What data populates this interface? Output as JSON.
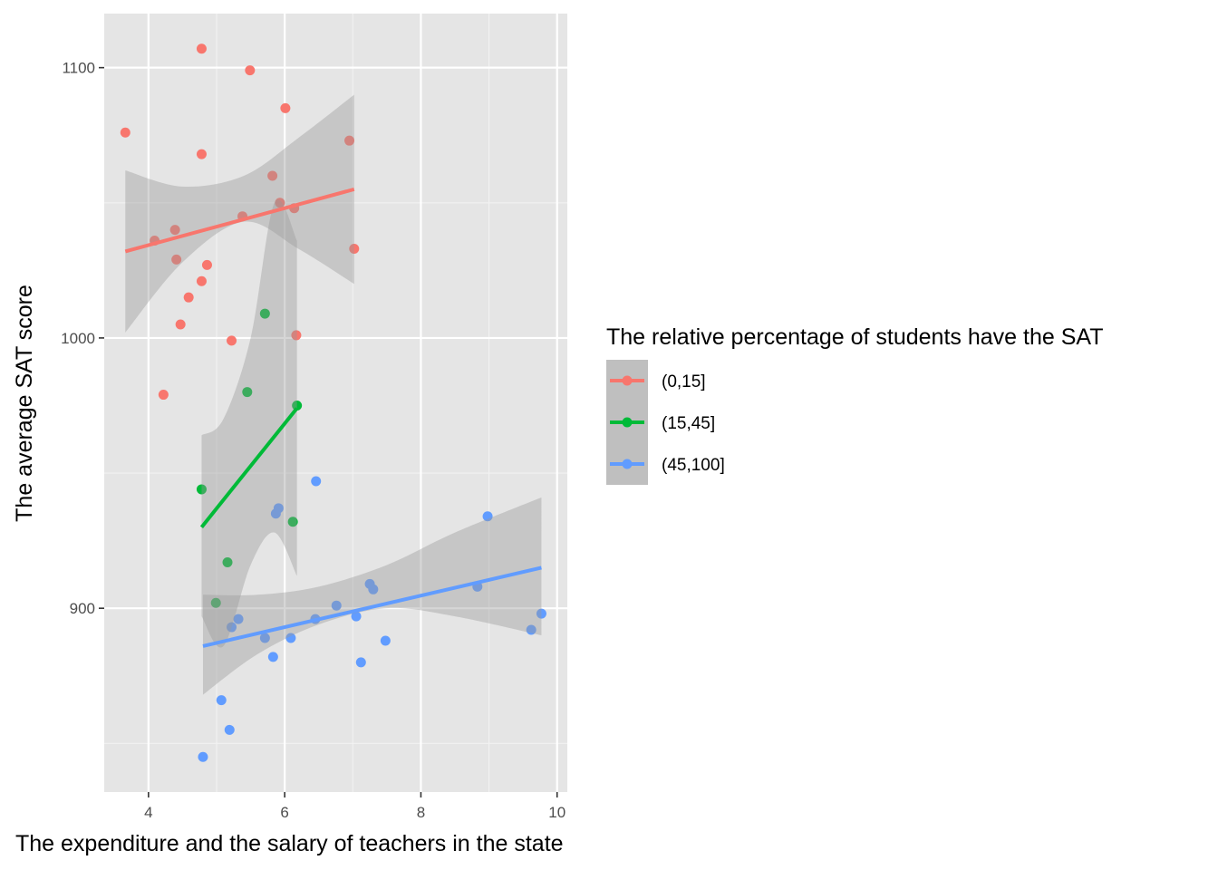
{
  "chart_data": {
    "type": "scatter",
    "xlabel": "The expenditure and the salary of teachers in the state",
    "ylabel": "The average SAT score",
    "xlim": [
      3.35,
      10.15
    ],
    "ylim": [
      832,
      1120
    ],
    "x_ticks": [
      4,
      6,
      8,
      10
    ],
    "x_tick_labels": [
      "4",
      "6",
      "8",
      "10"
    ],
    "y_ticks": [
      900,
      1000,
      1100
    ],
    "y_tick_labels": [
      "900",
      "1000",
      "1100"
    ],
    "x_minor": [
      5,
      7,
      9
    ],
    "y_minor": [
      850,
      950,
      1050
    ],
    "background": "#e5e5e5",
    "grid": true,
    "legend": {
      "title": "The relative percentage of students have the SAT",
      "placement": "right",
      "entries": [
        "(0,15]",
        "(15,45]",
        "(45,100]"
      ]
    },
    "series": [
      {
        "name": "(0,15]",
        "color": "#f8766d",
        "points": [
          [
            3.66,
            1076
          ],
          [
            4.09,
            1036
          ],
          [
            4.22,
            979
          ],
          [
            4.39,
            1040
          ],
          [
            4.41,
            1029
          ],
          [
            4.47,
            1005
          ],
          [
            4.59,
            1015
          ],
          [
            4.78,
            1021
          ],
          [
            4.78,
            1107
          ],
          [
            4.78,
            1068
          ],
          [
            4.86,
            1027
          ],
          [
            5.22,
            999
          ],
          [
            5.38,
            1045
          ],
          [
            5.49,
            1099
          ],
          [
            5.82,
            1060
          ],
          [
            5.93,
            1050
          ],
          [
            6.01,
            1085
          ],
          [
            6.14,
            1048
          ],
          [
            6.17,
            1001
          ],
          [
            6.95,
            1073
          ],
          [
            7.02,
            1033
          ]
        ],
        "fit": [
          [
            3.66,
            1032
          ],
          [
            7.02,
            1055
          ]
        ],
        "ci_upper": [
          [
            3.66,
            1062
          ],
          [
            4.5,
            1056
          ],
          [
            5.4,
            1060
          ],
          [
            6.2,
            1074
          ],
          [
            7.02,
            1090
          ]
        ],
        "ci_lower": [
          [
            3.66,
            1002
          ],
          [
            4.5,
            1028
          ],
          [
            5.4,
            1043
          ],
          [
            6.2,
            1033
          ],
          [
            7.02,
            1020
          ]
        ]
      },
      {
        "name": "(15,45]",
        "color": "#00ba38",
        "points": [
          [
            4.78,
            944
          ],
          [
            4.99,
            902
          ],
          [
            5.16,
            917
          ],
          [
            5.45,
            980
          ],
          [
            5.71,
            1009
          ],
          [
            6.12,
            932
          ],
          [
            6.18,
            975
          ]
        ],
        "fit": [
          [
            4.78,
            930
          ],
          [
            6.18,
            974
          ]
        ],
        "ci_upper": [
          [
            4.78,
            964
          ],
          [
            5.1,
            970
          ],
          [
            5.5,
            1000
          ],
          [
            5.85,
            1050
          ],
          [
            6.18,
            1036
          ]
        ],
        "ci_lower": [
          [
            4.78,
            897
          ],
          [
            5.1,
            886
          ],
          [
            5.5,
            916
          ],
          [
            5.85,
            928
          ],
          [
            6.18,
            912
          ]
        ]
      },
      {
        "name": "(45,100]",
        "color": "#619cff",
        "points": [
          [
            4.8,
            845
          ],
          [
            5.07,
            866
          ],
          [
            5.19,
            855
          ],
          [
            5.22,
            893
          ],
          [
            5.32,
            896
          ],
          [
            5.71,
            889
          ],
          [
            5.83,
            882
          ],
          [
            5.87,
            935
          ],
          [
            5.91,
            937
          ],
          [
            6.09,
            889
          ],
          [
            6.45,
            896
          ],
          [
            6.46,
            947
          ],
          [
            6.76,
            901
          ],
          [
            7.05,
            897
          ],
          [
            7.12,
            880
          ],
          [
            7.25,
            909
          ],
          [
            7.3,
            907
          ],
          [
            7.48,
            888
          ],
          [
            8.83,
            908
          ],
          [
            8.98,
            934
          ],
          [
            9.62,
            892
          ],
          [
            9.77,
            898
          ]
        ],
        "fit": [
          [
            4.8,
            886
          ],
          [
            9.77,
            915
          ]
        ],
        "ci_upper": [
          [
            4.8,
            905
          ],
          [
            5.6,
            905
          ],
          [
            6.5,
            908
          ],
          [
            7.5,
            916
          ],
          [
            8.5,
            928
          ],
          [
            9.77,
            941
          ]
        ],
        "ci_lower": [
          [
            4.8,
            868
          ],
          [
            5.6,
            883
          ],
          [
            6.5,
            894
          ],
          [
            7.5,
            900
          ],
          [
            8.5,
            897
          ],
          [
            9.77,
            890
          ]
        ]
      }
    ]
  }
}
